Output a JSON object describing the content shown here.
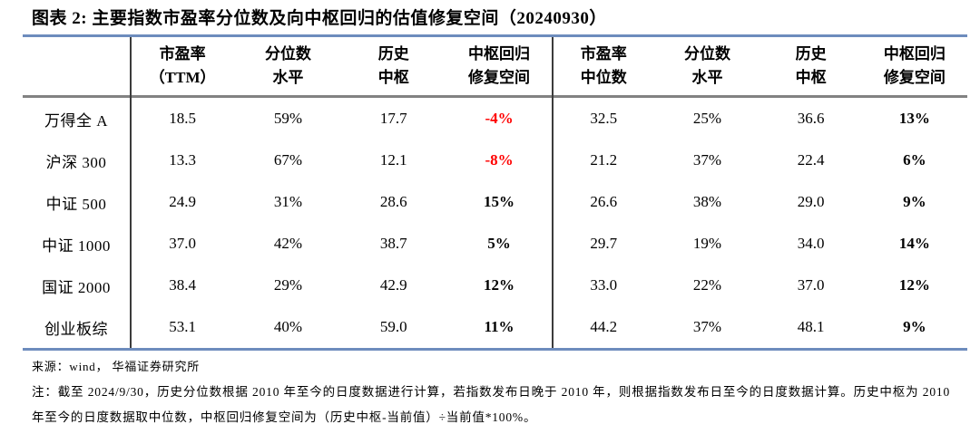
{
  "title": "图表 2:  主要指数市盈率分位数及向中枢回归的估值修复空间（20240930）",
  "colors": {
    "negative_value": "#ff0000",
    "table_border_blue": "#6d8cbd",
    "header_underline_gray": "#828282",
    "divider_dark": "#3c3c3c",
    "text": "#000000"
  },
  "table": {
    "headers": [
      {
        "line1": "市盈率",
        "line2": "（TTM）"
      },
      {
        "line1": "分位数",
        "line2": "水平"
      },
      {
        "line1": "历史",
        "line2": "中枢"
      },
      {
        "line1": "中枢回归",
        "line2": "修复空间"
      },
      {
        "line1": "市盈率",
        "line2": "中位数"
      },
      {
        "line1": "分位数",
        "line2": "水平"
      },
      {
        "line1": "历史",
        "line2": "中枢"
      },
      {
        "line1": "中枢回归",
        "line2": "修复空间"
      }
    ],
    "rows": [
      {
        "label": "万得全 A",
        "values": [
          "18.5",
          "59%",
          "17.7",
          "-4%",
          "32.5",
          "25%",
          "36.6",
          "13%"
        ]
      },
      {
        "label": "沪深 300",
        "values": [
          "13.3",
          "67%",
          "12.1",
          "-8%",
          "21.2",
          "37%",
          "22.4",
          "6%"
        ]
      },
      {
        "label": "中证 500",
        "values": [
          "24.9",
          "31%",
          "28.6",
          "15%",
          "26.6",
          "38%",
          "29.0",
          "9%"
        ]
      },
      {
        "label": "中证 1000",
        "values": [
          "37.0",
          "42%",
          "38.7",
          "5%",
          "29.7",
          "19%",
          "34.0",
          "14%"
        ]
      },
      {
        "label": "国证 2000",
        "values": [
          "38.4",
          "29%",
          "42.9",
          "12%",
          "33.0",
          "22%",
          "37.0",
          "12%"
        ]
      },
      {
        "label": "创业板综",
        "values": [
          "53.1",
          "40%",
          "59.0",
          "11%",
          "44.2",
          "37%",
          "48.1",
          "9%"
        ]
      }
    ]
  },
  "chart_data": {
    "type": "table",
    "title": "图表 2:  主要指数市盈率分位数及向中枢回归的估值修复空间（20240930）",
    "row_labels": [
      "万得全 A",
      "沪深 300",
      "中证 500",
      "中证 1000",
      "国证 2000",
      "创业板综"
    ],
    "columns": [
      "市盈率（TTM）",
      "分位数水平",
      "历史中枢",
      "中枢回归修复空间",
      "市盈率中位数",
      "分位数水平",
      "历史中枢",
      "中枢回归修复空间"
    ],
    "values": [
      [
        18.5,
        "59%",
        17.7,
        "-4%",
        32.5,
        "25%",
        36.6,
        "13%"
      ],
      [
        13.3,
        "67%",
        12.1,
        "-8%",
        21.2,
        "37%",
        22.4,
        "6%"
      ],
      [
        24.9,
        "31%",
        28.6,
        "15%",
        26.6,
        "38%",
        29.0,
        "9%"
      ],
      [
        37.0,
        "42%",
        38.7,
        "5%",
        29.7,
        "19%",
        34.0,
        "14%"
      ],
      [
        38.4,
        "29%",
        42.9,
        "12%",
        33.0,
        "22%",
        37.0,
        "12%"
      ],
      [
        53.1,
        "40%",
        59.0,
        "11%",
        44.2,
        "37%",
        48.1,
        "9%"
      ]
    ]
  },
  "footer": {
    "source": "来源：wind， 华福证券研究所",
    "note": "注：截至 2024/9/30，历史分位数根据 2010 年至今的日度数据进行计算，若指数发布日晚于 2010 年，则根据指数发布日至今的日度数据计算。历史中枢为 2010 年至今的日度数据取中位数，中枢回归修复空间为（历史中枢-当前值）÷当前值*100%。"
  }
}
